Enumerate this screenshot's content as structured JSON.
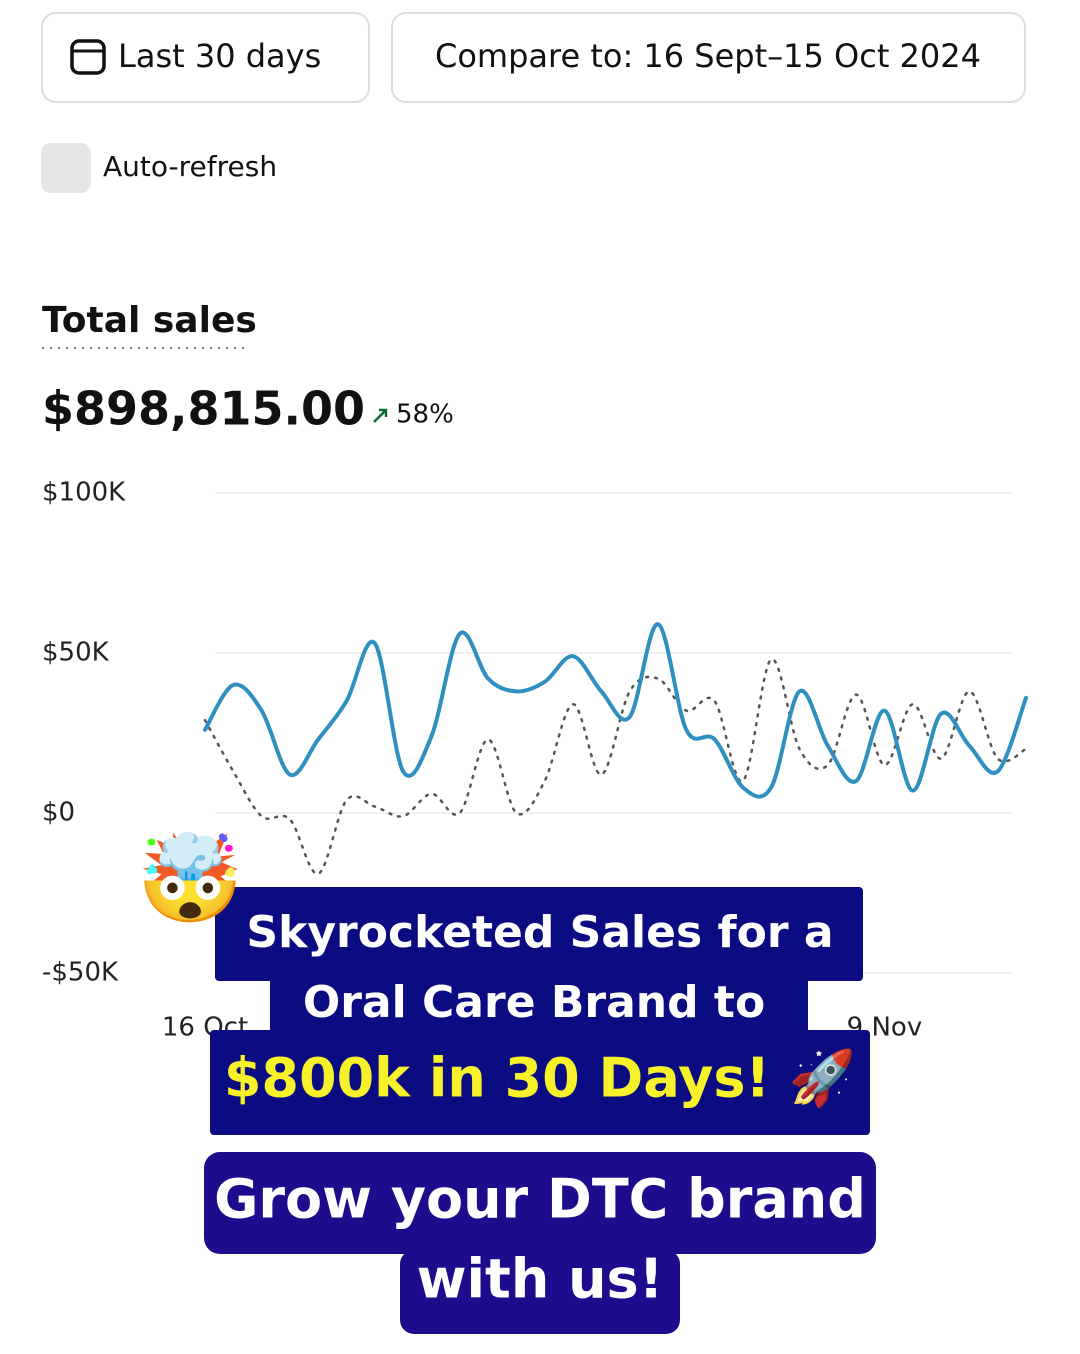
{
  "header": {
    "date_button": "Last 30 days",
    "compare_button": "Compare to: 16 Sept–15 Oct 2024",
    "auto_refresh": "Auto-refresh"
  },
  "summary": {
    "title": "Total sales",
    "total": "$898,815.00",
    "change": "58%"
  },
  "chart_data": {
    "type": "line",
    "categories": [
      "16 Oct",
      null,
      null,
      null,
      null,
      null,
      null,
      null,
      null,
      null,
      null,
      null,
      null,
      null,
      null,
      null,
      null,
      null,
      null,
      null,
      null,
      null,
      null,
      null,
      "9 Nov",
      null,
      null,
      null,
      null,
      null
    ],
    "series": [
      {
        "color": "#2f8fc0",
        "dash": false,
        "values": [
          26000,
          40000,
          32000,
          12000,
          23000,
          35000,
          53000,
          13000,
          24000,
          56000,
          42000,
          38000,
          41000,
          49000,
          38000,
          30000,
          59000,
          26000,
          23000,
          8000,
          8000,
          38000,
          21000,
          10000,
          32000,
          7000,
          31000,
          21000,
          13000,
          36000
        ]
      },
      {
        "color": "#555555",
        "dash": true,
        "values": [
          29000,
          13000,
          -1000,
          -2000,
          -19000,
          4000,
          2000,
          -1000,
          6000,
          0,
          23000,
          0,
          10000,
          34000,
          12000,
          38000,
          42000,
          32000,
          35000,
          10000,
          48000,
          20000,
          15000,
          37000,
          15000,
          34000,
          17000,
          38000,
          17000,
          20000
        ]
      }
    ],
    "ylim": [
      -50000,
      100000
    ],
    "yticks": [
      {
        "value": 100000,
        "label": "$100K"
      },
      {
        "value": 50000,
        "label": "$50K"
      },
      {
        "value": 0,
        "label": "$0"
      },
      {
        "value": -50000,
        "label": "-$50K"
      }
    ],
    "grid": true
  },
  "overlay": {
    "emoji": "🤯",
    "line1": "Skyrocketed Sales for a",
    "line2": "Oral Care Brand to",
    "line3": "$800k in 30 Days! 🚀",
    "cta1": "Grow your DTC brand",
    "cta2": "with us!"
  }
}
